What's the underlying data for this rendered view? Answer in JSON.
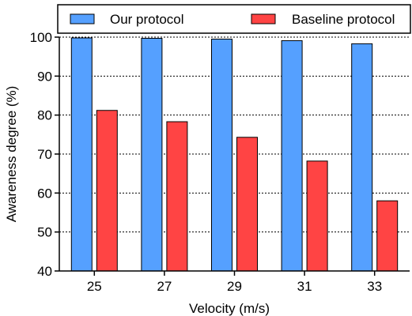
{
  "chart_data": {
    "type": "bar",
    "categories": [
      "25",
      "27",
      "29",
      "31",
      "33"
    ],
    "series": [
      {
        "name": "Our protocol",
        "values": [
          99.8,
          99.7,
          99.5,
          99.1,
          98.3
        ]
      },
      {
        "name": "Baseline protocol",
        "values": [
          81.2,
          78.3,
          74.3,
          68.2,
          58.0
        ]
      }
    ],
    "title": "",
    "xlabel": "Velocity (m/s)",
    "ylabel": "Awareness degree (%)",
    "ylim": [
      40,
      100
    ],
    "yticks": [
      40,
      50,
      60,
      70,
      80,
      90,
      100
    ],
    "grid": "horizontal dotted",
    "legend_position": "top",
    "colors": [
      "#55a0ff",
      "#ff4444"
    ]
  }
}
